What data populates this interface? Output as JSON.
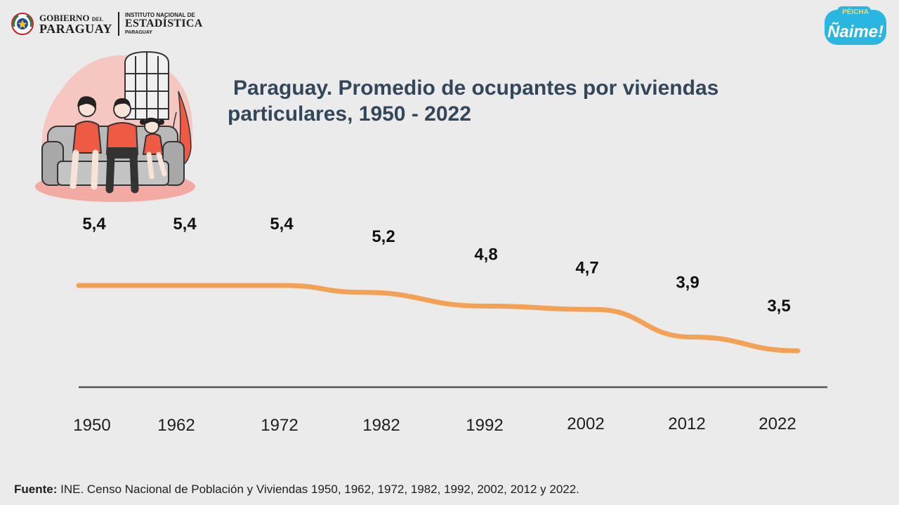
{
  "header": {
    "gov_line1": "GOBIERNO",
    "gov_del": "DEL",
    "gov_line2": "PARAGUAY",
    "ine_line1": "INSTITUTO NACIONAL DE",
    "ine_line2": "ESTADÍSTICA",
    "ine_line3": "PARAGUAY"
  },
  "badge": {
    "small": "PÉICHA",
    "big": "Ñaime!",
    "color": "#29b6e0"
  },
  "illustration": {
    "icon": "family-on-sofa-icon",
    "accent": "#ef5a44",
    "blob": "#f6c6c0"
  },
  "title": {
    "line1": "Paraguay. Promedio de ocupantes por viviendas",
    "line2": "particulares, 1950 - 2022"
  },
  "chart_data": {
    "type": "line",
    "title": "Paraguay. Promedio de ocupantes por viviendas particulares, 1950 - 2022",
    "categories": [
      "1950",
      "1962",
      "1972",
      "1982",
      "1992",
      "2002",
      "2012",
      "2022"
    ],
    "values": [
      5.4,
      5.4,
      5.4,
      5.2,
      4.8,
      4.7,
      3.9,
      3.5
    ],
    "value_labels": [
      "5,4",
      "5,4",
      "5,4",
      "5,2",
      "4,8",
      "4,7",
      "3,9",
      "3,5"
    ],
    "xlabel": "",
    "ylabel": "",
    "grid": false,
    "legend": "none",
    "line_color": "#f2a155",
    "axis_color": "#555555"
  },
  "source": {
    "prefix": "Fuente:",
    "text": " INE. Censo Nacional de Población y Viviendas 1950, 1962, 1972, 1982, 1992, 2002, 2012 y 2022."
  }
}
